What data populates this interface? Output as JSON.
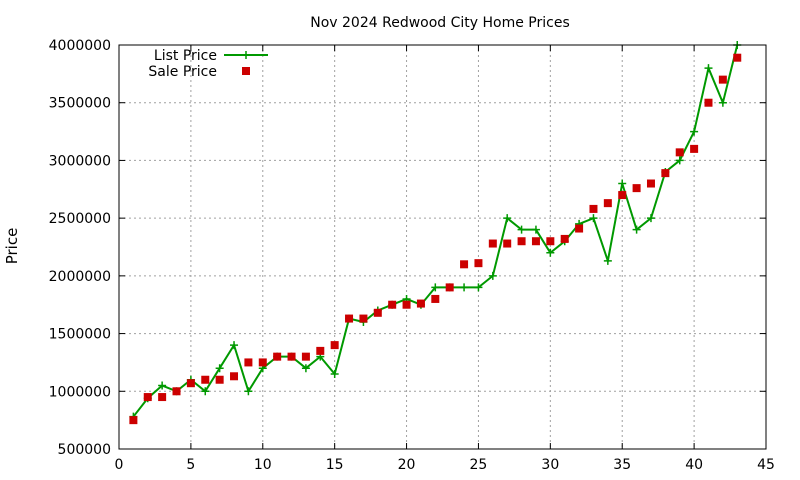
{
  "chart_data": {
    "type": "line",
    "title": "Nov 2024 Redwood City Home Prices",
    "xlabel": "",
    "ylabel": "Price",
    "xlim": [
      0,
      45
    ],
    "ylim": [
      500000,
      4000000
    ],
    "xticks": [
      0,
      5,
      10,
      15,
      20,
      25,
      30,
      35,
      40,
      45
    ],
    "yticks": [
      500000,
      1000000,
      1500000,
      2000000,
      2500000,
      3000000,
      3500000,
      4000000
    ],
    "grid": true,
    "legend_position": "top-left",
    "series": [
      {
        "name": "List Price",
        "style": "line-with-plus-markers",
        "color": "#009900",
        "x": [
          1,
          2,
          3,
          4,
          5,
          6,
          7,
          8,
          9,
          10,
          11,
          12,
          13,
          14,
          15,
          16,
          17,
          18,
          19,
          20,
          21,
          22,
          23,
          24,
          25,
          26,
          27,
          28,
          29,
          30,
          31,
          32,
          33,
          34,
          35,
          36,
          37,
          38,
          39,
          40,
          41,
          42,
          43
        ],
        "values": [
          780000,
          940000,
          1050000,
          1000000,
          1100000,
          1000000,
          1200000,
          1400000,
          1000000,
          1200000,
          1300000,
          1300000,
          1200000,
          1300000,
          1150000,
          1630000,
          1600000,
          1700000,
          1750000,
          1800000,
          1750000,
          1900000,
          1900000,
          1900000,
          1900000,
          2000000,
          2500000,
          2400000,
          2400000,
          2200000,
          2300000,
          2450000,
          2500000,
          2130000,
          2800000,
          2400000,
          2500000,
          2900000,
          3000000,
          3250000,
          3800000,
          3500000,
          4000000
        ]
      },
      {
        "name": "Sale Price",
        "style": "square-markers",
        "color": "#cc0000",
        "x": [
          1,
          2,
          3,
          4,
          5,
          6,
          7,
          8,
          9,
          10,
          11,
          12,
          13,
          14,
          15,
          16,
          17,
          18,
          19,
          20,
          21,
          22,
          23,
          24,
          25,
          26,
          27,
          28,
          29,
          30,
          31,
          32,
          33,
          34,
          35,
          36,
          37,
          38,
          39,
          40,
          41,
          42,
          43
        ],
        "values": [
          750000,
          950000,
          950000,
          1000000,
          1070000,
          1100000,
          1100000,
          1130000,
          1250000,
          1250000,
          1300000,
          1300000,
          1300000,
          1350000,
          1400000,
          1630000,
          1630000,
          1680000,
          1750000,
          1750000,
          1760000,
          1800000,
          1900000,
          2100000,
          2110000,
          2280000,
          2280000,
          2300000,
          2300000,
          2300000,
          2320000,
          2410000,
          2580000,
          2630000,
          2700000,
          2760000,
          2800000,
          2890000,
          3070000,
          3100000,
          3500000,
          3700000,
          3890000
        ]
      }
    ]
  }
}
